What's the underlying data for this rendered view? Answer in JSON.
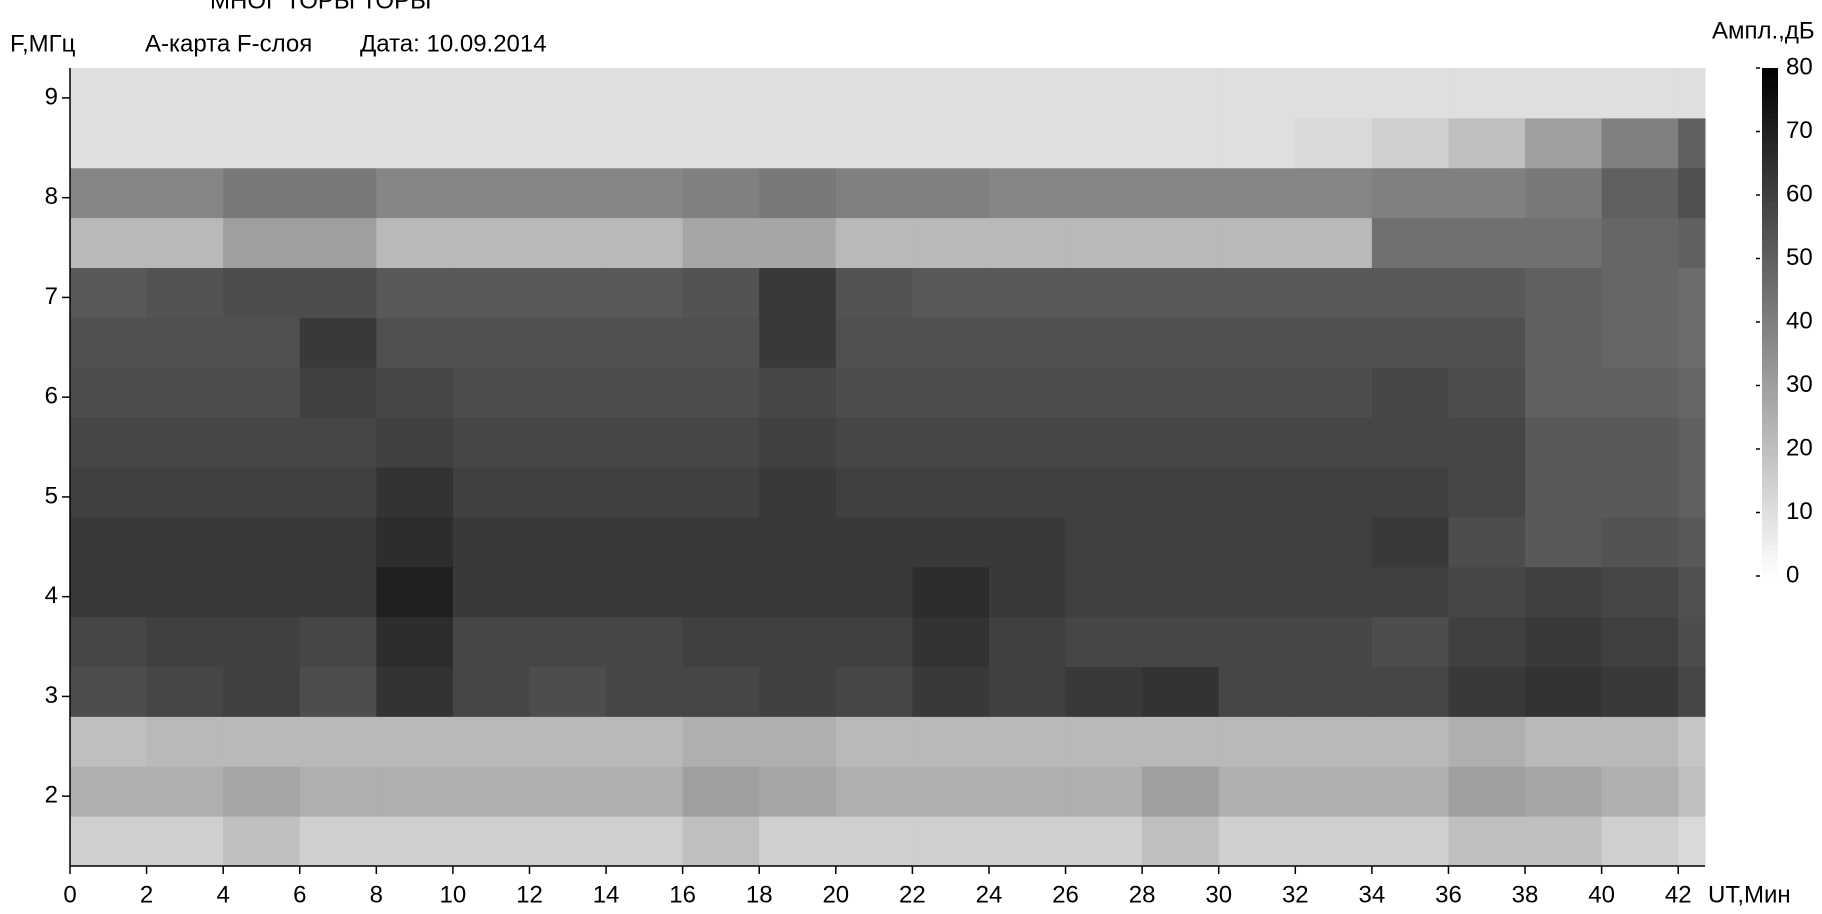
{
  "chart_data": {
    "type": "heatmap",
    "title": "МНОГ ТОРЫ ТОРЫ",
    "subtitle": "А-карта F-слоя",
    "date": "Дата: 10.09.2014",
    "y_label": "F,МГц",
    "x_label": "UT,Мин",
    "colorbar_label": "Ампл.,дБ",
    "colormap": [
      "#ffffff",
      "#000000"
    ],
    "xlim": [
      0,
      42.7
    ],
    "ylim": [
      1.3,
      9.3
    ],
    "xticks": [
      0,
      2,
      4,
      6,
      8,
      10,
      12,
      14,
      16,
      18,
      20,
      22,
      24,
      26,
      28,
      30,
      32,
      34,
      36,
      38,
      40,
      42
    ],
    "yticks": [
      2,
      3,
      4,
      5,
      6,
      7,
      8,
      9
    ],
    "clim": [
      0,
      80
    ],
    "cticks": [
      0,
      10,
      20,
      30,
      40,
      50,
      60,
      70,
      80
    ],
    "xbins": [
      0,
      2,
      4,
      6,
      8,
      10,
      12,
      14,
      16,
      18,
      20,
      22,
      24,
      26,
      28,
      30,
      32,
      34,
      36,
      38,
      40,
      42,
      42.7
    ],
    "ybins": [
      1.3,
      1.8,
      2.3,
      2.8,
      3.3,
      3.8,
      4.3,
      4.8,
      5.3,
      5.8,
      6.3,
      6.8,
      7.3,
      7.8,
      8.3,
      8.8,
      9.3
    ],
    "z": [
      [
        15,
        15,
        20,
        15,
        15,
        15,
        15,
        15,
        20,
        15,
        15,
        15,
        15,
        15,
        20,
        15,
        15,
        15,
        20,
        20,
        15,
        12
      ],
      [
        25,
        25,
        28,
        25,
        25,
        25,
        25,
        25,
        30,
        28,
        25,
        25,
        25,
        25,
        30,
        25,
        25,
        25,
        30,
        28,
        25,
        20
      ],
      [
        20,
        22,
        22,
        22,
        22,
        22,
        22,
        22,
        25,
        25,
        22,
        22,
        22,
        22,
        22,
        22,
        22,
        22,
        25,
        22,
        22,
        18
      ],
      [
        56,
        58,
        60,
        56,
        64,
        58,
        56,
        58,
        58,
        60,
        58,
        62,
        60,
        62,
        64,
        58,
        58,
        58,
        62,
        64,
        62,
        58
      ],
      [
        58,
        60,
        60,
        58,
        66,
        58,
        58,
        58,
        60,
        60,
        60,
        64,
        60,
        58,
        58,
        58,
        58,
        56,
        60,
        62,
        60,
        56
      ],
      [
        62,
        62,
        62,
        62,
        70,
        62,
        62,
        62,
        62,
        62,
        62,
        66,
        62,
        60,
        60,
        60,
        60,
        60,
        58,
        60,
        58,
        55
      ],
      [
        62,
        62,
        62,
        62,
        66,
        62,
        62,
        62,
        62,
        62,
        62,
        62,
        62,
        60,
        60,
        60,
        60,
        62,
        56,
        52,
        54,
        52
      ],
      [
        60,
        60,
        60,
        60,
        64,
        60,
        60,
        60,
        60,
        62,
        60,
        60,
        60,
        60,
        60,
        60,
        60,
        60,
        58,
        52,
        52,
        50
      ],
      [
        58,
        58,
        58,
        58,
        60,
        58,
        58,
        58,
        58,
        60,
        58,
        58,
        58,
        58,
        58,
        58,
        58,
        58,
        58,
        52,
        52,
        50
      ],
      [
        56,
        56,
        56,
        60,
        58,
        56,
        56,
        56,
        56,
        58,
        56,
        56,
        56,
        56,
        56,
        56,
        56,
        58,
        56,
        50,
        50,
        48
      ],
      [
        55,
        55,
        55,
        62,
        55,
        55,
        55,
        55,
        55,
        62,
        55,
        55,
        55,
        55,
        55,
        55,
        55,
        55,
        55,
        50,
        48,
        46
      ],
      [
        52,
        54,
        56,
        56,
        52,
        52,
        52,
        52,
        54,
        62,
        54,
        52,
        52,
        52,
        52,
        52,
        52,
        52,
        52,
        50,
        48,
        46
      ],
      [
        22,
        22,
        30,
        30,
        22,
        22,
        22,
        22,
        28,
        28,
        22,
        22,
        22,
        22,
        22,
        22,
        22,
        45,
        45,
        45,
        48,
        50
      ],
      [
        38,
        38,
        42,
        42,
        38,
        38,
        38,
        38,
        40,
        42,
        40,
        40,
        38,
        38,
        38,
        38,
        38,
        40,
        40,
        42,
        50,
        55
      ],
      [
        10,
        10,
        10,
        10,
        10,
        10,
        10,
        10,
        10,
        10,
        10,
        10,
        10,
        10,
        10,
        10,
        12,
        15,
        20,
        30,
        40,
        50
      ],
      [
        10,
        10,
        10,
        10,
        10,
        10,
        10,
        10,
        10,
        10,
        10,
        10,
        10,
        10,
        10,
        10,
        10,
        10,
        10,
        10,
        10,
        10
      ]
    ]
  }
}
